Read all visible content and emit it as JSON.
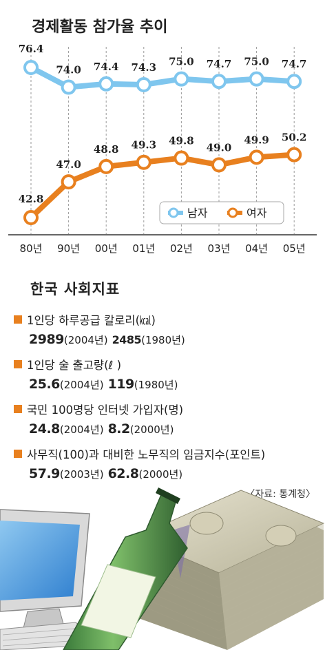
{
  "chart_data": {
    "type": "line",
    "title": "경제활동 참가율 추이",
    "categories": [
      "80년",
      "90년",
      "00년",
      "01년",
      "02년",
      "03년",
      "04년",
      "05년"
    ],
    "series": [
      {
        "name": "남자",
        "color": "#7fc6ee",
        "values": [
          76.4,
          74.0,
          74.4,
          74.3,
          75.0,
          74.7,
          75.0,
          74.7
        ],
        "labels": [
          "76.4",
          "74.0",
          "74.4",
          "74.3",
          "75.0",
          "74.7",
          "75.0",
          "74.7"
        ]
      },
      {
        "name": "여자",
        "color": "#e8801f",
        "values": [
          42.8,
          47.0,
          48.8,
          49.3,
          49.8,
          49.0,
          49.9,
          50.2
        ],
        "labels": [
          "42.8",
          "47.0",
          "48.8",
          "49.3",
          "49.8",
          "49.0",
          "49.9",
          "50.2"
        ]
      }
    ],
    "legend": "right, below upper series",
    "grid": "vertical dashed lines"
  },
  "section_title": "한국 사회지표",
  "indicators": [
    {
      "label": "1인당 하루공급 칼로리(㎉)",
      "v1": "2989",
      "p1": "(2004년)",
      "v2": "2485",
      "p2": "(1980년)"
    },
    {
      "label": "1인당 술 출고량(ℓ )",
      "v1": "25.6",
      "p1": "(2004년)",
      "v2": "119",
      "p2": "(1980년)"
    },
    {
      "label": "국민 100명당 인터넷 가입자(명)",
      "v1": "24.8",
      "p1": "(2004년)",
      "v2": "8.2",
      "p2": "(2000년)"
    },
    {
      "label": "사무직(100)과 대비한 노무직의 임금지수(포인트)",
      "v1": "57.9",
      "p1": "(2003년)",
      "v2": "62.8",
      "p2": "(2000년)"
    }
  ],
  "source": "〈자료: 통계청〉",
  "icons": [
    "computer-icon",
    "soju-bottle-icon",
    "money-stack-icon"
  ]
}
